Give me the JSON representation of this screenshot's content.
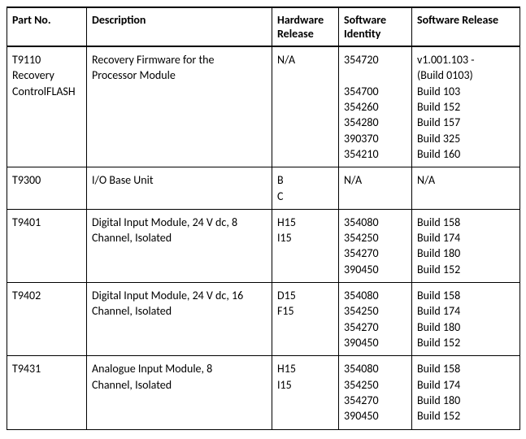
{
  "table": {
    "headers": {
      "partNo": "Part No.",
      "description": "Description",
      "hwRelease": "Hardware Release",
      "swIdentity": "Software Identity",
      "swRelease": "Software Release"
    },
    "columnWidths": {
      "partNo": 98,
      "description": 228,
      "hwRelease": 82,
      "swIdentity": 90,
      "swRelease": 133
    },
    "borderColor": "#000000",
    "backgroundColor": "#ffffff",
    "fontFamily": "Calibri, 'Segoe UI', Arial, sans-serif",
    "fontSize": 14,
    "rows": [
      {
        "partNo": [
          "T9110",
          "Recovery",
          "ControlFLASH"
        ],
        "description": [
          "Recovery Firmware for the",
          "Processor Module"
        ],
        "hwRelease": [
          "N/A"
        ],
        "swIdentity": [
          "354720",
          "",
          "354700",
          "354260",
          "354280",
          "390370",
          "354210"
        ],
        "swRelease": [
          "v1.001.103 -",
          "(Build 0103)",
          "Build 103",
          "Build 152",
          "Build 157",
          "Build 325",
          "Build 160"
        ]
      },
      {
        "partNo": [
          "T9300"
        ],
        "description": [
          "I/O Base Unit"
        ],
        "hwRelease": [
          "B",
          "C"
        ],
        "swIdentity": [
          "N/A"
        ],
        "swRelease": [
          "N/A"
        ]
      },
      {
        "partNo": [
          "T9401"
        ],
        "description": [
          "Digital Input Module, 24 V dc, 8",
          "Channel, Isolated"
        ],
        "hwRelease": [
          "H15",
          "I15"
        ],
        "swIdentity": [
          "354080",
          "354250",
          "354270",
          "390450"
        ],
        "swRelease": [
          "Build 158",
          "Build 174",
          "Build 180",
          "Build 152"
        ]
      },
      {
        "partNo": [
          "T9402"
        ],
        "description": [
          "Digital Input Module, 24 V dc, 16",
          "Channel, Isolated"
        ],
        "hwRelease": [
          "D15",
          "F15"
        ],
        "swIdentity": [
          "354080",
          "354250",
          "354270",
          "390450"
        ],
        "swRelease": [
          "Build 158",
          "Build 174",
          "Build 180",
          "Build 152"
        ]
      },
      {
        "partNo": [
          "T9431"
        ],
        "description": [
          "Analogue Input Module, 8",
          "Channel, Isolated"
        ],
        "hwRelease": [
          "H15",
          "I15"
        ],
        "swIdentity": [
          "354080",
          "354250",
          "354270",
          "390450"
        ],
        "swRelease": [
          "Build 158",
          "Build 174",
          "Build 180",
          "Build 152"
        ]
      }
    ]
  }
}
